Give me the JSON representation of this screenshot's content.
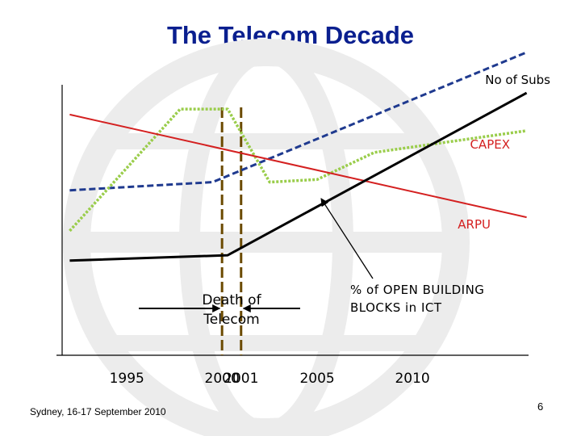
{
  "slide": {
    "title": "The Telecom Decade",
    "footer": "Sydney, 16-17 September 2010",
    "page_number": "6"
  },
  "colors": {
    "title": "#0a1f8f",
    "subs": "#1f3a8f",
    "capex": "#9acd4b",
    "arpu": "#d42020",
    "open_blocks": "#000000",
    "marker": "#6b4a00",
    "watermark": "#ececec"
  },
  "chart_data": {
    "type": "line",
    "title": "The Telecom Decade",
    "xlabel": "",
    "ylabel": "",
    "xlim": [
      1991.6,
      2016.1
    ],
    "ylim": [
      0,
      100
    ],
    "x_ticks": [
      {
        "value": 1995,
        "label": "1995"
      },
      {
        "value": 2000,
        "label": "2000"
      },
      {
        "value": 2001,
        "label": "2001"
      },
      {
        "value": 2005,
        "label": "2005"
      },
      {
        "value": 2010,
        "label": "2010"
      }
    ],
    "series": [
      {
        "name": "No of Subs",
        "key": "subs",
        "style": "dashed",
        "x": [
          1992,
          1999.5,
          2016
        ],
        "y": [
          61,
          64,
          112
        ]
      },
      {
        "name": "CAPEX",
        "key": "capex",
        "style": "dotted",
        "x": [
          1992,
          1997.8,
          2000.3,
          2002.5,
          2005,
          2008,
          2016
        ],
        "y": [
          46,
          91,
          91,
          64,
          65,
          75,
          83
        ]
      },
      {
        "name": "ARPU",
        "key": "arpu",
        "style": "solid",
        "x": [
          1992,
          2016
        ],
        "y": [
          89,
          51
        ]
      },
      {
        "name": "% of OPEN BUILDING BLOCKS in ICT",
        "key": "open_blocks",
        "style": "solid",
        "x": [
          1992,
          2000.3,
          2016
        ],
        "y": [
          35,
          37,
          97
        ]
      }
    ],
    "series_labels": {
      "subs": "No of Subs",
      "capex": "CAPEX",
      "arpu": "ARPU",
      "open_blocks": "% of OPEN BUILDING BLOCKS in ICT"
    },
    "open_blocks_label_lines": [
      "% of OPEN BUILDING",
      "BLOCKS in ICT"
    ],
    "markers": [
      2000,
      2001
    ],
    "annotation": {
      "text_lines": [
        "Death of",
        "Telecom"
      ]
    }
  }
}
